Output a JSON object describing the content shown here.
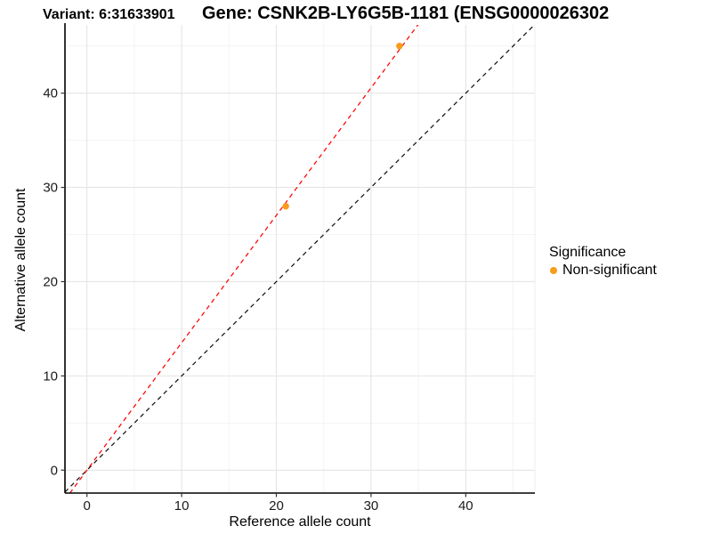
{
  "titles": {
    "variant": "Variant: 6:31633901",
    "gene": "Gene: CSNK2B-LY6G5B-1181 (ENSG0000026302"
  },
  "chart_data": {
    "type": "scatter",
    "xlabel": "Reference allele count",
    "ylabel": "Alternative allele count",
    "xlim": [
      -2.32,
      47.3
    ],
    "ylim": [
      -2.43,
      47.24
    ],
    "xticks": [
      0,
      10,
      20,
      30,
      40
    ],
    "yticks": [
      0,
      10,
      20,
      30,
      40
    ],
    "minor_xticks": [
      5,
      15,
      25,
      35,
      45
    ],
    "minor_yticks": [
      5,
      15,
      25,
      35,
      45
    ],
    "grid": true,
    "points": [
      {
        "x": 21,
        "y": 28,
        "series": "Non-significant"
      },
      {
        "x": 33,
        "y": 45,
        "series": "Non-significant"
      }
    ],
    "point_color": "#F99C1B",
    "point_radius": 3.7,
    "lines": [
      {
        "name": "identity-line",
        "slope": 1.0,
        "intercept": 0,
        "color": "#141414",
        "style": "dashed"
      },
      {
        "name": "allelic-ratio-line",
        "slope": 1.352,
        "intercept": 0,
        "color": "#FF0000",
        "style": "dashed"
      }
    ],
    "legend": {
      "position": "right",
      "title": "Significance",
      "items": [
        {
          "label": "Non-significant",
          "color": "#F99C1B"
        }
      ]
    },
    "colors": {
      "axis_line": "#000000",
      "tick_mark": "#333333",
      "tick_label": "#1A1A1A",
      "grid_major": "#E5E5E5",
      "grid_minor": "#F2F2F2",
      "panel_edge": "#ECECEC"
    }
  }
}
